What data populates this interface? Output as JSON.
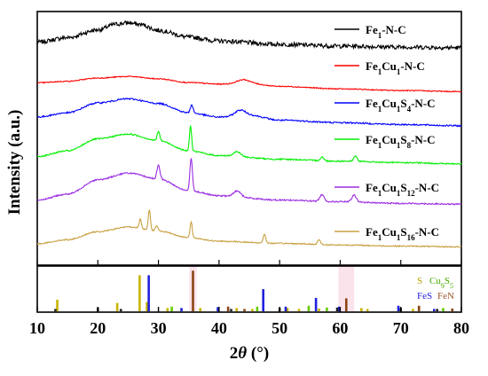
{
  "chart_data": {
    "type": "line",
    "xlabel_prefix": "2",
    "xlabel_var": "θ",
    "xlabel_unit": " (°)",
    "ylabel": "Intensity (a.u.)",
    "xlim": [
      10,
      80
    ],
    "x_ticks": [
      10,
      20,
      30,
      40,
      50,
      60,
      70,
      80
    ],
    "tick_labels": [
      "10",
      "20",
      "30",
      "40",
      "50",
      "60",
      "70",
      "80"
    ],
    "series": [
      {
        "name": "Fe1-N-C",
        "label_parts": [
          [
            "Fe",
            ""
          ],
          [
            "1",
            "sub"
          ],
          [
            "-N-C",
            ""
          ]
        ],
        "color": "#000000",
        "noise": 1.4,
        "points": [
          [
            10,
            0.55
          ],
          [
            15,
            0.82
          ],
          [
            20,
            1.28
          ],
          [
            23,
            1.62
          ],
          [
            25,
            1.7
          ],
          [
            27,
            1.6
          ],
          [
            30,
            1.25
          ],
          [
            35,
            0.85
          ],
          [
            40,
            0.62
          ],
          [
            50,
            0.42
          ],
          [
            60,
            0.32
          ],
          [
            70,
            0.26
          ],
          [
            80,
            0.22
          ]
        ],
        "peaks": []
      },
      {
        "name": "Fe1Cu1-N-C",
        "label_parts": [
          [
            "Fe",
            ""
          ],
          [
            "1",
            "sub"
          ],
          [
            "Cu",
            ""
          ],
          [
            "1",
            "sub"
          ],
          [
            "-N-C",
            ""
          ]
        ],
        "color": "#ff0000",
        "noise": 0.35,
        "points": [
          [
            10,
            0.7
          ],
          [
            15,
            0.8
          ],
          [
            20,
            1.0
          ],
          [
            25,
            1.1
          ],
          [
            30,
            0.95
          ],
          [
            35,
            0.72
          ],
          [
            40,
            0.62
          ],
          [
            45,
            0.65
          ],
          [
            50,
            0.48
          ],
          [
            60,
            0.32
          ],
          [
            70,
            0.22
          ],
          [
            80,
            0.15
          ]
        ],
        "peaks": [
          [
            44,
            0.25,
            1.5
          ]
        ]
      },
      {
        "name": "Fe1Cu1S4-N-C",
        "label_parts": [
          [
            "Fe",
            ""
          ],
          [
            "1",
            "sub"
          ],
          [
            "Cu",
            ""
          ],
          [
            "1",
            "sub"
          ],
          [
            "S",
            ""
          ],
          [
            "4",
            "sub"
          ],
          [
            "-N-C",
            ""
          ]
        ],
        "color": "#0000ff",
        "noise": 0.45,
        "points": [
          [
            10,
            0.62
          ],
          [
            15,
            0.85
          ],
          [
            20,
            1.38
          ],
          [
            25,
            1.6
          ],
          [
            30,
            1.35
          ],
          [
            35,
            0.85
          ],
          [
            40,
            0.62
          ],
          [
            45,
            0.72
          ],
          [
            50,
            0.45
          ],
          [
            60,
            0.32
          ],
          [
            70,
            0.22
          ],
          [
            80,
            0.15
          ]
        ],
        "peaks": [
          [
            35.5,
            0.45,
            0.3
          ],
          [
            43.5,
            0.3,
            1.2
          ]
        ]
      },
      {
        "name": "Fe1Cu1S8-N-C",
        "label_parts": [
          [
            "Fe",
            ""
          ],
          [
            "1",
            "sub"
          ],
          [
            "Cu",
            ""
          ],
          [
            "1",
            "sub"
          ],
          [
            "S",
            ""
          ],
          [
            "8",
            "sub"
          ],
          [
            "-N-C",
            ""
          ]
        ],
        "color": "#00ee00",
        "noise": 0.4,
        "points": [
          [
            10,
            0.55
          ],
          [
            15,
            0.85
          ],
          [
            20,
            1.5
          ],
          [
            25,
            1.75
          ],
          [
            30,
            1.4
          ],
          [
            35,
            0.85
          ],
          [
            40,
            0.6
          ],
          [
            50,
            0.4
          ],
          [
            60,
            0.3
          ],
          [
            70,
            0.22
          ],
          [
            80,
            0.15
          ]
        ],
        "peaks": [
          [
            30,
            0.5,
            0.3
          ],
          [
            35.3,
            1.35,
            0.25
          ],
          [
            43,
            0.25,
            0.8
          ],
          [
            57,
            0.2,
            0.4
          ],
          [
            62.5,
            0.3,
            0.4
          ]
        ]
      },
      {
        "name": "Fe1Cu1S12-N-C",
        "label_parts": [
          [
            "Fe",
            ""
          ],
          [
            "1",
            "sub"
          ],
          [
            "Cu",
            ""
          ],
          [
            "1",
            "sub"
          ],
          [
            "S",
            ""
          ],
          [
            "12",
            "sub"
          ],
          [
            "-N-C",
            ""
          ]
        ],
        "color": "#9a2be2",
        "noise": 0.45,
        "points": [
          [
            10,
            0.55
          ],
          [
            15,
            0.9
          ],
          [
            20,
            1.75
          ],
          [
            25,
            2.15
          ],
          [
            30,
            1.8
          ],
          [
            35,
            1.1
          ],
          [
            40,
            0.8
          ],
          [
            50,
            0.55
          ],
          [
            60,
            0.45
          ],
          [
            70,
            0.35
          ],
          [
            80,
            0.3
          ]
        ],
        "peaks": [
          [
            30,
            0.8,
            0.35
          ],
          [
            35.4,
            1.9,
            0.3
          ],
          [
            43,
            0.35,
            0.8
          ],
          [
            57,
            0.4,
            0.5
          ],
          [
            62.3,
            0.4,
            0.5
          ]
        ]
      },
      {
        "name": "Fe1Cu1S16-N-C",
        "label_parts": [
          [
            "Fe",
            ""
          ],
          [
            "1",
            "sub"
          ],
          [
            "Cu",
            ""
          ],
          [
            "1",
            "sub"
          ],
          [
            "S",
            ""
          ],
          [
            "16",
            "sub"
          ],
          [
            "-N-C",
            ""
          ]
        ],
        "color": "#c8a040",
        "noise": 0.4,
        "points": [
          [
            10,
            0.4
          ],
          [
            15,
            0.65
          ],
          [
            20,
            1.15
          ],
          [
            25,
            1.45
          ],
          [
            30,
            1.2
          ],
          [
            35,
            0.78
          ],
          [
            40,
            0.55
          ],
          [
            50,
            0.42
          ],
          [
            60,
            0.32
          ],
          [
            70,
            0.25
          ],
          [
            80,
            0.2
          ]
        ],
        "peaks": [
          [
            27,
            0.6,
            0.25
          ],
          [
            28.5,
            1.3,
            0.25
          ],
          [
            29.7,
            0.3,
            0.3
          ],
          [
            35.4,
            1.0,
            0.25
          ],
          [
            47.5,
            0.55,
            0.3
          ],
          [
            56.5,
            0.3,
            0.35
          ]
        ]
      }
    ],
    "reference": {
      "legend": {
        "row1": [
          {
            "text": "S",
            "color": "#b8a000"
          },
          {
            "text": "Cu",
            "color": "#44aa00",
            "parts": [
              [
                "Cu",
                ""
              ],
              [
                "9",
                "sub"
              ],
              [
                "S",
                ""
              ],
              [
                "5",
                "sub"
              ]
            ]
          }
        ],
        "row2": [
          {
            "text": "FeS",
            "color": "#2020dd"
          },
          {
            "text": "FeN",
            "color": "#a0522d"
          }
        ]
      },
      "phases": [
        {
          "name": "S",
          "color": "#c8b400",
          "lines": [
            [
              13.3,
              0.25
            ],
            [
              23.2,
              0.18
            ],
            [
              26.9,
              0.78
            ],
            [
              28.1,
              0.2
            ],
            [
              31.5,
              0.07
            ],
            [
              36.9,
              0.07
            ],
            [
              42.9,
              0.07
            ],
            [
              45.5,
              0.05
            ],
            [
              51.3,
              0.07
            ],
            [
              53.2,
              0.05
            ],
            [
              56.5,
              0.06
            ],
            [
              63.5,
              0.07
            ],
            [
              64.5,
              0.05
            ],
            [
              72.0,
              0.05
            ]
          ]
        },
        {
          "name": "Cu9S5",
          "color": "#66cc00",
          "lines": [
            [
              32.2,
              0.1
            ],
            [
              46.3,
              0.1
            ],
            [
              54.8,
              0.12
            ],
            [
              57.8,
              0.08
            ],
            [
              77.0,
              0.07
            ]
          ]
        },
        {
          "name": "FeS",
          "color": "#2020dd",
          "lines": [
            [
              28.4,
              0.78
            ],
            [
              33.8,
              0.07
            ],
            [
              39.8,
              0.09
            ],
            [
              47.3,
              0.48
            ],
            [
              51.0,
              0.1
            ],
            [
              56.0,
              0.29
            ],
            [
              59.8,
              0.1
            ],
            [
              69.6,
              0.12
            ],
            [
              75.5,
              0.05
            ]
          ]
        },
        {
          "name": "FeN",
          "color": "#8b4513",
          "lines": [
            [
              35.7,
              0.88
            ],
            [
              41.5,
              0.1
            ],
            [
              44.2,
              0.05
            ],
            [
              61.0,
              0.28
            ],
            [
              73.0,
              0.12
            ],
            [
              78.5,
              0.06
            ]
          ]
        },
        {
          "name": "black",
          "color": "#222222",
          "lines": [
            [
              13.0,
              0.05
            ],
            [
              20.0,
              0.08
            ],
            [
              23.8,
              0.05
            ],
            [
              42.0,
              0.05
            ],
            [
              50.0,
              0.07
            ],
            [
              59.5,
              0.08
            ],
            [
              70.0,
              0.07
            ],
            [
              76.0,
              0.05
            ]
          ]
        }
      ],
      "highlights": [
        [
          35.1,
          36.3
        ],
        [
          59.7,
          62.3
        ]
      ]
    }
  }
}
